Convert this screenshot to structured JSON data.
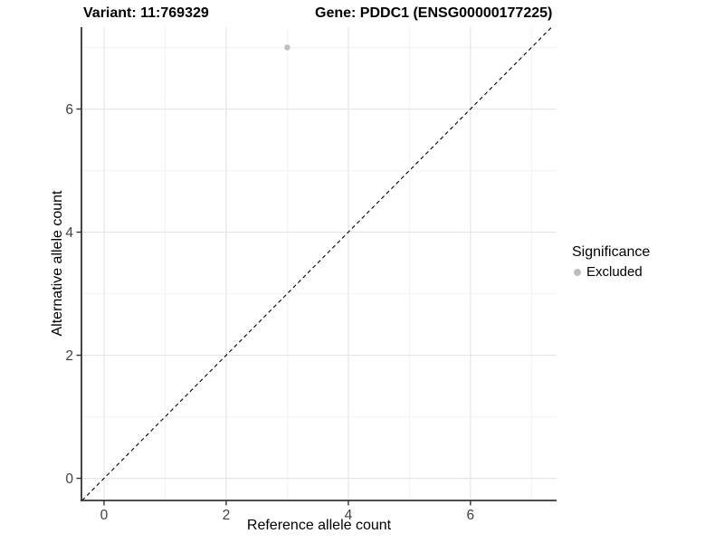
{
  "chart_data": {
    "type": "scatter",
    "title_left": "Variant: 11:769329",
    "title_right": "Gene: PDDC1 (ENSG00000177225)",
    "xlabel": "Reference allele count",
    "ylabel": "Alternative allele count",
    "xlim": [
      -0.37,
      7.41
    ],
    "ylim": [
      -0.36,
      7.33
    ],
    "x_ticks": [
      0,
      2,
      4,
      6
    ],
    "x_tick_labels": [
      "0",
      "2",
      "4",
      "6"
    ],
    "y_ticks": [
      0,
      2,
      4,
      6
    ],
    "y_tick_labels": [
      "0",
      "2",
      "4",
      "6"
    ],
    "x_minor_gridlines": [
      1,
      3,
      5,
      7
    ],
    "y_minor_gridlines": [
      1,
      3,
      5,
      7
    ],
    "grid": "major+minor",
    "identity_line": {
      "slope": 1,
      "intercept": 0,
      "style": "dashed",
      "color": "#000000"
    },
    "series": [
      {
        "name": "Excluded",
        "color": "#bebebe",
        "points": [
          {
            "x": 3,
            "y": 7
          }
        ]
      }
    ],
    "legend": {
      "title": "Significance",
      "position": "right",
      "entries": [
        {
          "label": "Excluded",
          "color": "#bebebe"
        }
      ]
    },
    "colors": {
      "background": "#ffffff",
      "grid_major": "#e4e4e4",
      "grid_minor": "#f0f0f0",
      "axis_line": "#333333",
      "tick_mark": "#333333",
      "tick_label": "#404040",
      "title_text": "#000000",
      "point_excluded": "#bebebe",
      "dashed_line": "#000000"
    }
  }
}
